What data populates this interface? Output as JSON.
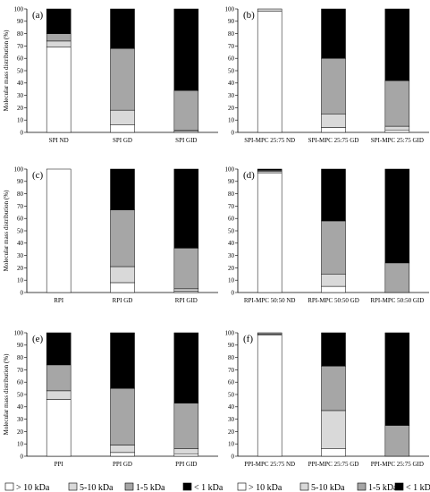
{
  "legend": {
    "items": [
      {
        "label": "> 10 kDa",
        "color": "#ffffff"
      },
      {
        "label": "5-10 kDa",
        "color": "#d9d9d9"
      },
      {
        "label": "1-5 kDa",
        "color": "#a6a6a6"
      },
      {
        "label": "< 1 kDa",
        "color": "#000000"
      }
    ]
  },
  "chart_data": [
    {
      "type": "bar",
      "stacked": true,
      "panel_label": "(a)",
      "ylabel": "Molecular mass distribution (%)",
      "ylim": [
        0,
        100
      ],
      "yticks": [
        0,
        10,
        20,
        30,
        40,
        50,
        60,
        70,
        80,
        90,
        100
      ],
      "categories": [
        "SPI ND",
        "SPI GD",
        "SPI GID"
      ],
      "series": [
        {
          "name": "> 10 kDa",
          "values": [
            69,
            6,
            1
          ]
        },
        {
          "name": "5-10 kDa",
          "values": [
            5,
            12,
            1
          ]
        },
        {
          "name": "1-5 kDa",
          "values": [
            6,
            50,
            32
          ]
        },
        {
          "name": "< 1 kDa",
          "values": [
            20,
            32,
            66
          ]
        }
      ]
    },
    {
      "type": "bar",
      "stacked": true,
      "panel_label": "(b)",
      "ylabel": "",
      "ylim": [
        0,
        100
      ],
      "yticks": [
        0,
        10,
        20,
        30,
        40,
        50,
        60,
        70,
        80,
        90,
        100
      ],
      "categories": [
        "SPI-MPC 25:75 ND",
        "SPI-MPC 25:75 GD",
        "SPI-MPC 25:75 GID"
      ],
      "series": [
        {
          "name": "> 10 kDa",
          "values": [
            98,
            4,
            2
          ]
        },
        {
          "name": "5-10 kDa",
          "values": [
            2,
            11,
            3
          ]
        },
        {
          "name": "1-5 kDa",
          "values": [
            0,
            45,
            37
          ]
        },
        {
          "name": "< 1 kDa",
          "values": [
            0,
            40,
            58
          ]
        }
      ]
    },
    {
      "type": "bar",
      "stacked": true,
      "panel_label": "(c)",
      "ylabel": "Molecular mass distribution (%)",
      "ylim": [
        0,
        100
      ],
      "yticks": [
        0,
        10,
        20,
        30,
        40,
        50,
        60,
        70,
        80,
        90,
        100
      ],
      "categories": [
        "RPI",
        "RPI GD",
        "RPI GID"
      ],
      "series": [
        {
          "name": "> 10 kDa",
          "values": [
            100,
            8,
            1
          ]
        },
        {
          "name": "5-10 kDa",
          "values": [
            0,
            13,
            2
          ]
        },
        {
          "name": "1-5 kDa",
          "values": [
            0,
            46,
            33
          ]
        },
        {
          "name": "< 1 kDa",
          "values": [
            0,
            33,
            64
          ]
        }
      ]
    },
    {
      "type": "bar",
      "stacked": true,
      "panel_label": "(d)",
      "ylabel": "",
      "ylim": [
        0,
        100
      ],
      "yticks": [
        0,
        10,
        20,
        30,
        40,
        50,
        60,
        70,
        80,
        90,
        100
      ],
      "categories": [
        "RPI-MPC 50:50 ND",
        "RPI-MPC 50:50 GD",
        "RPI-MPC 50:50 GID"
      ],
      "series": [
        {
          "name": "> 10 kDa",
          "values": [
            97,
            5,
            0
          ]
        },
        {
          "name": "5-10 kDa",
          "values": [
            1,
            10,
            0
          ]
        },
        {
          "name": "1-5 kDa",
          "values": [
            1,
            43,
            24
          ]
        },
        {
          "name": "< 1 kDa",
          "values": [
            1,
            42,
            76
          ]
        }
      ]
    },
    {
      "type": "bar",
      "stacked": true,
      "panel_label": "(e)",
      "ylabel": "Molecular mass distribution (%)",
      "ylim": [
        0,
        100
      ],
      "yticks": [
        0,
        10,
        20,
        30,
        40,
        50,
        60,
        70,
        80,
        90,
        100
      ],
      "categories": [
        "PPI",
        "PPI GD",
        "PPI GID"
      ],
      "series": [
        {
          "name": "> 10 kDa",
          "values": [
            46,
            3,
            2
          ]
        },
        {
          "name": "5-10 kDa",
          "values": [
            7,
            6,
            4
          ]
        },
        {
          "name": "1-5 kDa",
          "values": [
            21,
            46,
            37
          ]
        },
        {
          "name": "< 1 kDa",
          "values": [
            26,
            45,
            57
          ]
        }
      ]
    },
    {
      "type": "bar",
      "stacked": true,
      "panel_label": "(f)",
      "ylabel": "",
      "ylim": [
        0,
        100
      ],
      "yticks": [
        0,
        10,
        20,
        30,
        40,
        50,
        60,
        70,
        80,
        90,
        100
      ],
      "categories": [
        "PPI-MPC 25:75 ND",
        "PPI-MPC 25:75 GD",
        "PPI-MPC 25:75 GID"
      ],
      "series": [
        {
          "name": "> 10 kDa",
          "values": [
            98,
            6,
            0
          ]
        },
        {
          "name": "5-10 kDa",
          "values": [
            1,
            31,
            0
          ]
        },
        {
          "name": "1-5 kDa",
          "values": [
            1,
            36,
            25
          ]
        },
        {
          "name": "< 1 kDa",
          "values": [
            0,
            27,
            75
          ]
        }
      ]
    }
  ]
}
